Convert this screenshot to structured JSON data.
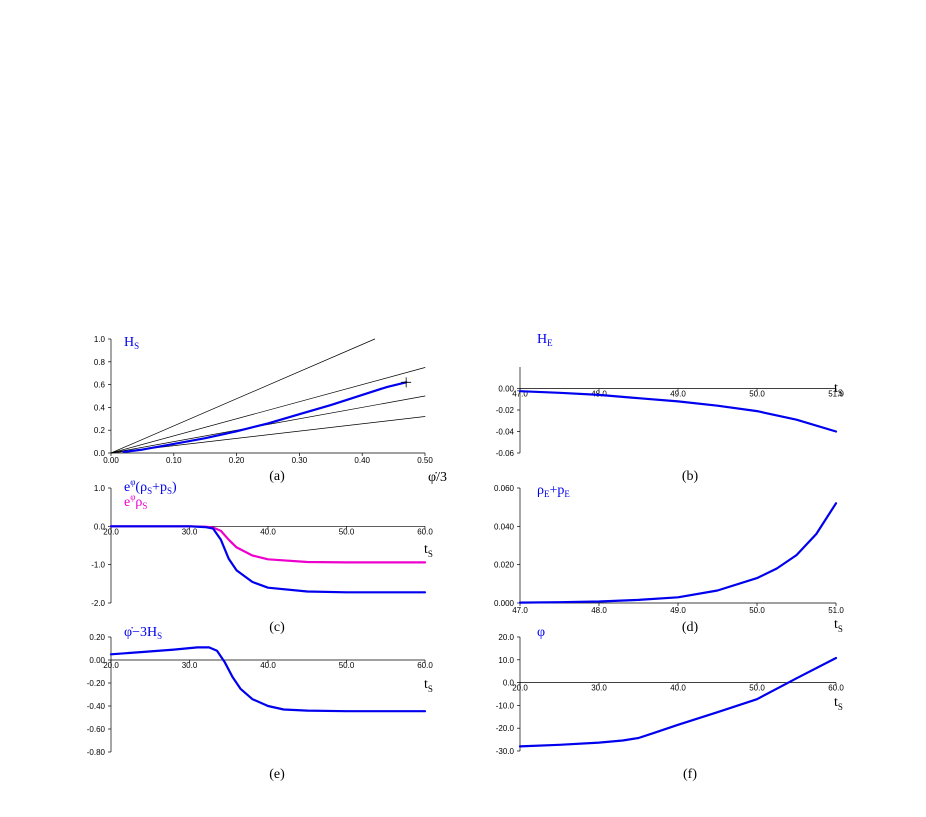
{
  "chart_data": [
    {
      "id": "a",
      "type": "line",
      "caption": "(a)",
      "title": "H",
      "title_sub": "S",
      "xlabel": "φ̇/3",
      "xlim": [
        0,
        0.5
      ],
      "ylim": [
        0,
        1.0
      ],
      "xticks": [
        0,
        0.1,
        0.2,
        0.3,
        0.4,
        0.5
      ],
      "xtick_labels": [
        "0.00",
        "0.10",
        "0.20",
        "0.30",
        "0.40",
        "0.50"
      ],
      "yticks": [
        0,
        0.2,
        0.4,
        0.6,
        0.8,
        1.0
      ],
      "ytick_labels": [
        "0.0",
        "0.2",
        "0.4",
        "0.6",
        "0.8",
        "1.0"
      ],
      "xaxis_at": 0,
      "series": [
        {
          "color": "#000000",
          "width": 0.7,
          "x": [
            0,
            0.42
          ],
          "y": [
            0,
            1.0
          ]
        },
        {
          "color": "#000000",
          "width": 0.7,
          "x": [
            0,
            0.5
          ],
          "y": [
            0,
            0.75
          ]
        },
        {
          "color": "#000000",
          "width": 0.7,
          "x": [
            0,
            0.5
          ],
          "y": [
            0,
            0.5
          ]
        },
        {
          "color": "#000000",
          "width": 0.7,
          "x": [
            0,
            0.5
          ],
          "y": [
            0,
            0.32
          ]
        },
        {
          "color": "#0000ee",
          "width": 2.2,
          "x": [
            0.02,
            0.05,
            0.1,
            0.15,
            0.2,
            0.25,
            0.3,
            0.35,
            0.4,
            0.44,
            0.47
          ],
          "y": [
            0.01,
            0.03,
            0.08,
            0.13,
            0.19,
            0.26,
            0.34,
            0.42,
            0.51,
            0.58,
            0.62
          ]
        }
      ],
      "marker": {
        "x": 0.47,
        "y": 0.62,
        "symbol": "+"
      }
    },
    {
      "id": "b",
      "type": "line",
      "caption": "(b)",
      "title": "H",
      "title_sub": "E",
      "xlabel": "t",
      "xlabel_sub": "S",
      "xlim": [
        47.0,
        51.0
      ],
      "ylim": [
        -0.06,
        0.02
      ],
      "xticks": [
        47,
        48,
        49,
        50,
        51
      ],
      "xtick_labels": [
        "47.0",
        "48.0",
        "49.0",
        "50.0",
        "51.0"
      ],
      "yticks": [
        -0.06,
        -0.04,
        -0.02,
        0
      ],
      "ytick_labels": [
        "-0.06",
        "-0.04",
        "-0.02",
        "0.00"
      ],
      "xaxis_at": 0,
      "series": [
        {
          "color": "#0000ee",
          "width": 2.2,
          "x": [
            47.0,
            47.5,
            48.0,
            48.5,
            49.0,
            49.5,
            50.0,
            50.5,
            51.0
          ],
          "y": [
            -0.0025,
            -0.004,
            -0.006,
            -0.009,
            -0.012,
            -0.016,
            -0.021,
            -0.029,
            -0.04
          ]
        }
      ]
    },
    {
      "id": "c",
      "type": "line",
      "caption": "(c)",
      "title": "e^φ(ρS+pS)",
      "title_parts": [
        "e",
        "φ",
        "(ρ",
        "S",
        "+p",
        "S",
        ")"
      ],
      "title2_parts": [
        "e",
        "φ",
        "ρ",
        "S"
      ],
      "xlabel": "t",
      "xlabel_sub": "S",
      "xlim": [
        20.0,
        60.0
      ],
      "ylim": [
        -2.0,
        1.0
      ],
      "xticks": [
        20,
        30,
        40,
        50,
        60
      ],
      "xtick_labels": [
        "20.0",
        "30.0",
        "40.0",
        "50.0",
        "60.0"
      ],
      "yticks": [
        -2.0,
        -1.0,
        0,
        1.0
      ],
      "ytick_labels": [
        "-2.0",
        "-1.0",
        "0.0",
        "1.0"
      ],
      "xaxis_at": 0,
      "series": [
        {
          "color": "#ee00cc",
          "width": 2.2,
          "x": [
            20,
            30,
            32,
            33,
            34,
            35,
            36,
            38,
            40,
            45,
            50,
            60
          ],
          "y": [
            0,
            0,
            -0.01,
            -0.03,
            -0.12,
            -0.35,
            -0.55,
            -0.76,
            -0.86,
            -0.93,
            -0.94,
            -0.94
          ]
        },
        {
          "color": "#0000ee",
          "width": 2.2,
          "x": [
            20,
            30,
            32,
            33,
            34,
            35,
            36,
            38,
            40,
            45,
            50,
            60
          ],
          "y": [
            0,
            0,
            -0.02,
            -0.06,
            -0.35,
            -0.85,
            -1.15,
            -1.45,
            -1.6,
            -1.7,
            -1.72,
            -1.72
          ]
        }
      ]
    },
    {
      "id": "d",
      "type": "line",
      "caption": "(d)",
      "title": "ρE+pE",
      "title_parts": [
        "ρ",
        "E",
        "+p",
        "E"
      ],
      "xlabel": "t",
      "xlabel_sub": "S",
      "xlim": [
        47.0,
        51.0
      ],
      "ylim": [
        0,
        0.06
      ],
      "xticks": [
        47,
        48,
        49,
        50,
        51
      ],
      "xtick_labels": [
        "47.0",
        "48.0",
        "49.0",
        "50.0",
        "51.0"
      ],
      "yticks": [
        0,
        0.02,
        0.04,
        0.06
      ],
      "ytick_labels": [
        "0.000",
        "0.020",
        "0.040",
        "0.060"
      ],
      "xaxis_at": 0,
      "series": [
        {
          "color": "#0000ee",
          "width": 2.2,
          "x": [
            47.0,
            47.5,
            48.0,
            48.5,
            49.0,
            49.5,
            50.0,
            50.25,
            50.5,
            50.75,
            51.0
          ],
          "y": [
            0.0002,
            0.0004,
            0.0008,
            0.0016,
            0.003,
            0.0065,
            0.013,
            0.018,
            0.025,
            0.036,
            0.052
          ]
        }
      ]
    },
    {
      "id": "e",
      "type": "line",
      "caption": "(e)",
      "title": "φ̇−3HS",
      "title_parts": [
        "φ̇−3H",
        "S"
      ],
      "xlabel": "t",
      "xlabel_sub": "S",
      "xlim": [
        20.0,
        60.0
      ],
      "ylim": [
        -0.8,
        0.2
      ],
      "xticks": [
        20,
        30,
        40,
        50,
        60
      ],
      "xtick_labels": [
        "20.0",
        "30.0",
        "40.0",
        "50.0",
        "60.0"
      ],
      "yticks": [
        -0.8,
        -0.6,
        -0.4,
        -0.2,
        0,
        0.2
      ],
      "ytick_labels": [
        "-0.80",
        "-0.60",
        "-0.40",
        "-0.20",
        "0.00",
        "0.20"
      ],
      "xaxis_at": 0,
      "series": [
        {
          "color": "#0000ee",
          "width": 2.2,
          "x": [
            20,
            24,
            28,
            31,
            32.5,
            33.5,
            34.5,
            35.5,
            36.5,
            38,
            40,
            42,
            45,
            50,
            60
          ],
          "y": [
            0.05,
            0.07,
            0.09,
            0.11,
            0.11,
            0.08,
            -0.02,
            -0.15,
            -0.25,
            -0.34,
            -0.4,
            -0.43,
            -0.44,
            -0.445,
            -0.445
          ]
        }
      ]
    },
    {
      "id": "f",
      "type": "line",
      "caption": "(f)",
      "title": "φ",
      "title_parts": [
        "φ"
      ],
      "xlabel": "t",
      "xlabel_sub": "S",
      "xlim": [
        20.0,
        60.0
      ],
      "ylim": [
        -30.0,
        20.0
      ],
      "xticks": [
        20,
        30,
        40,
        50,
        60
      ],
      "xtick_labels": [
        "20.0",
        "30.0",
        "40.0",
        "50.0",
        "60.0"
      ],
      "yticks": [
        -30,
        -20,
        -10,
        0,
        10,
        20
      ],
      "ytick_labels": [
        "-30.0",
        "-20.0",
        "-10.0",
        "0.0",
        "10.0",
        "20.0"
      ],
      "xaxis_at": 0,
      "series": [
        {
          "color": "#0000ee",
          "width": 2.2,
          "x": [
            20,
            25,
            30,
            33,
            35,
            37,
            40,
            45,
            50,
            55,
            60
          ],
          "y": [
            -28.0,
            -27.3,
            -26.3,
            -25.4,
            -24.3,
            -22.0,
            -18.5,
            -13.0,
            -7.3,
            1.9,
            10.8
          ]
        }
      ]
    }
  ]
}
